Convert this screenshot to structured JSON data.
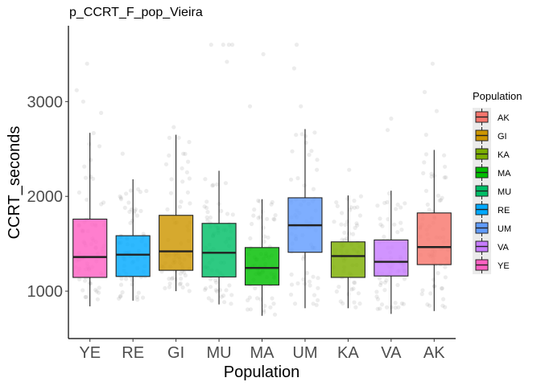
{
  "chart_data": {
    "type": "boxplot",
    "title": "p_CCRT_F_pop_Vieira",
    "xlabel": "Population",
    "ylabel": "CCRT_seconds",
    "ylim": [
      500,
      3800
    ],
    "yticks": [
      1000,
      2000,
      3000
    ],
    "categories": [
      "YE",
      "RE",
      "GI",
      "MU",
      "MA",
      "UM",
      "KA",
      "VA",
      "AK"
    ],
    "boxes": [
      {
        "name": "YE",
        "color": "#FF61C3",
        "whisker_low": 840,
        "q1": 1145,
        "median": 1360,
        "q3": 1760,
        "whisker_high": 2670,
        "outliers": [
          2880,
          3000,
          3120,
          3400
        ]
      },
      {
        "name": "RE",
        "color": "#00A9FF",
        "whisker_low": 900,
        "q1": 1155,
        "median": 1385,
        "q3": 1585,
        "whisker_high": 2180,
        "outliers": [
          2450
        ]
      },
      {
        "name": "GI",
        "color": "#CD9600",
        "whisker_low": 1000,
        "q1": 1220,
        "median": 1420,
        "q3": 1800,
        "whisker_high": 2650,
        "outliers": [
          2730
        ]
      },
      {
        "name": "MU",
        "color": "#00BE67",
        "whisker_low": 860,
        "q1": 1150,
        "median": 1405,
        "q3": 1715,
        "whisker_high": 2270,
        "outliers": [
          3420,
          3600,
          3600,
          3600,
          3600
        ]
      },
      {
        "name": "MA",
        "color": "#00BE00",
        "whisker_low": 740,
        "q1": 1065,
        "median": 1245,
        "q3": 1460,
        "whisker_high": 1970,
        "outliers": [
          2950,
          3500
        ]
      },
      {
        "name": "UM",
        "color": "#619CFF",
        "whisker_low": 820,
        "q1": 1410,
        "median": 1695,
        "q3": 1985,
        "whisker_high": 2710,
        "outliers": [
          2950,
          3350,
          3600
        ]
      },
      {
        "name": "KA",
        "color": "#7CAE00",
        "whisker_low": 820,
        "q1": 1145,
        "median": 1370,
        "q3": 1520,
        "whisker_high": 2010,
        "outliers": [
          2280
        ]
      },
      {
        "name": "VA",
        "color": "#C77CFF",
        "whisker_low": 760,
        "q1": 1160,
        "median": 1310,
        "q3": 1540,
        "whisker_high": 2060,
        "outliers": [
          2700,
          2820
        ]
      },
      {
        "name": "AK",
        "color": "#F8766D",
        "whisker_low": 790,
        "q1": 1280,
        "median": 1465,
        "q3": 1825,
        "whisker_high": 2490,
        "outliers": [
          2650,
          2900,
          3100,
          3400
        ]
      }
    ],
    "legend": {
      "title": "Population",
      "position": "right",
      "entries": [
        {
          "label": "AK",
          "color": "#F8766D"
        },
        {
          "label": "GI",
          "color": "#CD9600"
        },
        {
          "label": "KA",
          "color": "#7CAE00"
        },
        {
          "label": "MA",
          "color": "#00BE00"
        },
        {
          "label": "MU",
          "color": "#00BE67"
        },
        {
          "label": "RE",
          "color": "#00A9FF"
        },
        {
          "label": "UM",
          "color": "#619CFF"
        },
        {
          "label": "VA",
          "color": "#C77CFF"
        },
        {
          "label": "YE",
          "color": "#FF61C3"
        }
      ]
    },
    "jitter_points": true,
    "grid": false
  }
}
